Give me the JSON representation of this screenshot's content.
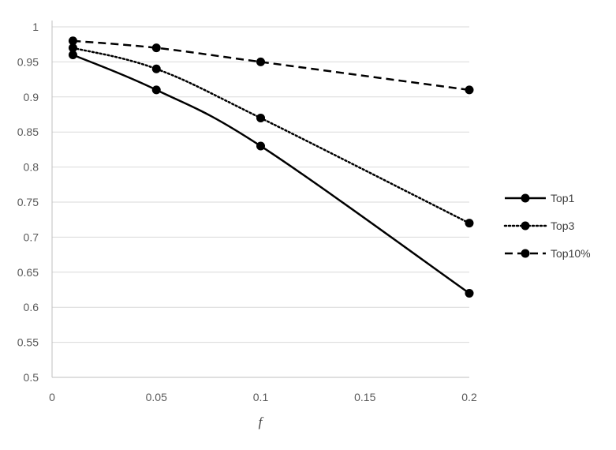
{
  "chart_data": {
    "type": "line",
    "title": "",
    "xlabel": "f",
    "ylabel": "",
    "x": [
      0.01,
      0.05,
      0.1,
      0.2
    ],
    "xlim": [
      0,
      0.2
    ],
    "ylim": [
      0.5,
      1
    ],
    "x_ticks": [
      "0",
      "0.05",
      "0.1",
      "0.15",
      "0.2"
    ],
    "y_ticks": [
      "0.5",
      "0.55",
      "0.6",
      "0.65",
      "0.7",
      "0.75",
      "0.8",
      "0.85",
      "0.9",
      "0.95",
      "1"
    ],
    "grid": true,
    "legend": "right",
    "series": [
      {
        "name": "Top1",
        "values": [
          0.96,
          0.91,
          0.83,
          0.62
        ],
        "line_style": "solid",
        "color": "#000000"
      },
      {
        "name": "Top3",
        "values": [
          0.97,
          0.94,
          0.87,
          0.72
        ],
        "line_style": "dotted",
        "color": "#000000"
      },
      {
        "name": "Top10%",
        "values": [
          0.98,
          0.97,
          0.95,
          0.91
        ],
        "line_style": "dashed",
        "color": "#000000"
      }
    ]
  }
}
